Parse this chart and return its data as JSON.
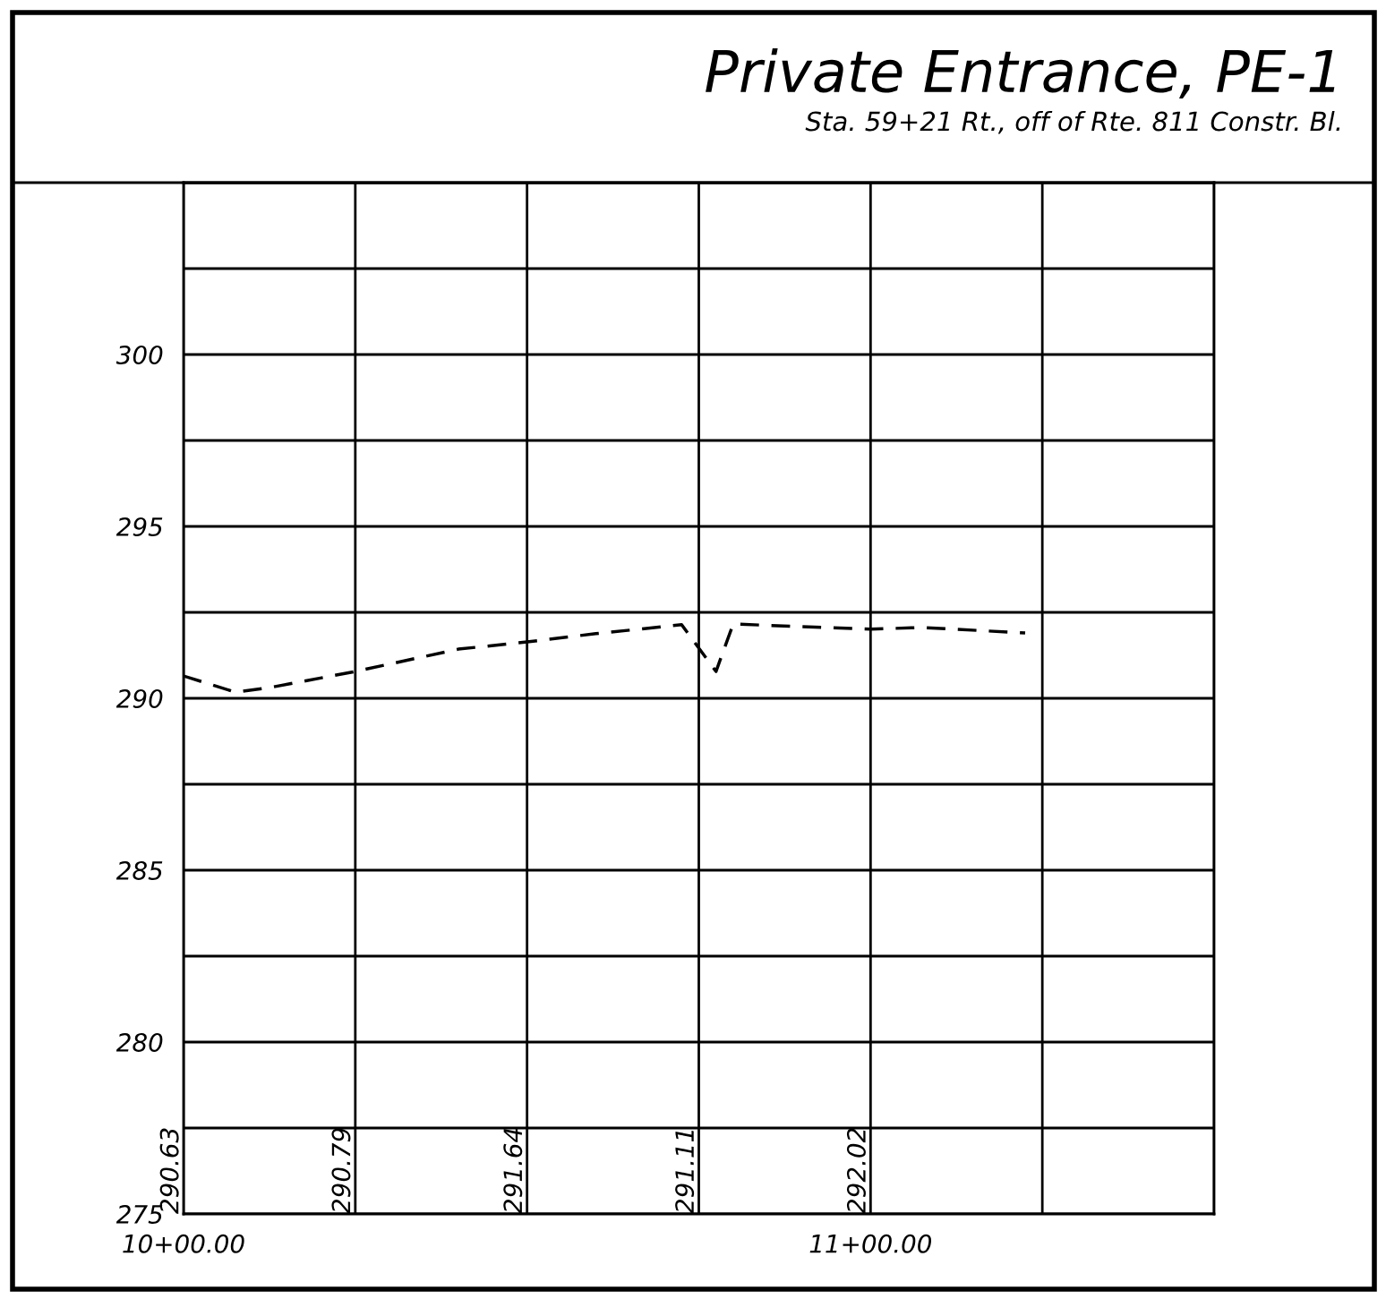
{
  "chart_data": {
    "type": "line",
    "title": "Private Entrance, PE-1",
    "subtitle": "Sta. 59+21 Rt., off of Rte. 811 Constr. Bl.",
    "categories": [
      "10+00.00",
      null,
      null,
      null,
      null,
      null,
      null,
      null,
      null,
      null,
      null,
      null,
      null,
      null,
      null,
      null,
      null,
      null,
      null,
      null,
      null,
      null,
      null,
      null,
      null,
      null,
      null,
      null,
      null,
      null,
      null,
      null,
      null,
      null,
      null,
      null,
      null,
      null,
      null,
      null,
      "11+00.00",
      null,
      null,
      null,
      null,
      null,
      null,
      null,
      null,
      null,
      null,
      null,
      null,
      null,
      null,
      null,
      null,
      null,
      null,
      null,
      null
    ],
    "series": [
      {
        "color": "#000000",
        "values": [
          290.65,
          null,
          null,
          290.18,
          null,
          290.31,
          null,
          null,
          null,
          null,
          290.78,
          null,
          null,
          null,
          null,
          null,
          291.43,
          null,
          null,
          null,
          291.64,
          null,
          null,
          null,
          291.88,
          null,
          null,
          null,
          null,
          292.14,
          null,
          290.78,
          292.16,
          null,
          null,
          null,
          null,
          null,
          null,
          null,
          292.01,
          null,
          null,
          292.06,
          null,
          null,
          null,
          null,
          null,
          291.9,
          null,
          null,
          null,
          null,
          null,
          null,
          null,
          null,
          null,
          null,
          null
        ]
      }
    ],
    "line_style": "dashed",
    "marker": "none",
    "grid": true,
    "ylim": [
      275,
      305
    ],
    "yticks": [
      275,
      {
        "value": 277.5,
        "label": null
      },
      280,
      {
        "value": 282.5,
        "label": null
      },
      285,
      {
        "value": 287.5,
        "label": null
      },
      290,
      {
        "value": 292.5,
        "label": null
      },
      295,
      {
        "value": 297.5,
        "label": null
      },
      300,
      {
        "value": 302.5,
        "label": null
      },
      {
        "value": 305,
        "label": null
      }
    ],
    "annotations": [
      "290.63",
      "290.79",
      "291.64",
      "291.11",
      "292.02"
    ]
  }
}
